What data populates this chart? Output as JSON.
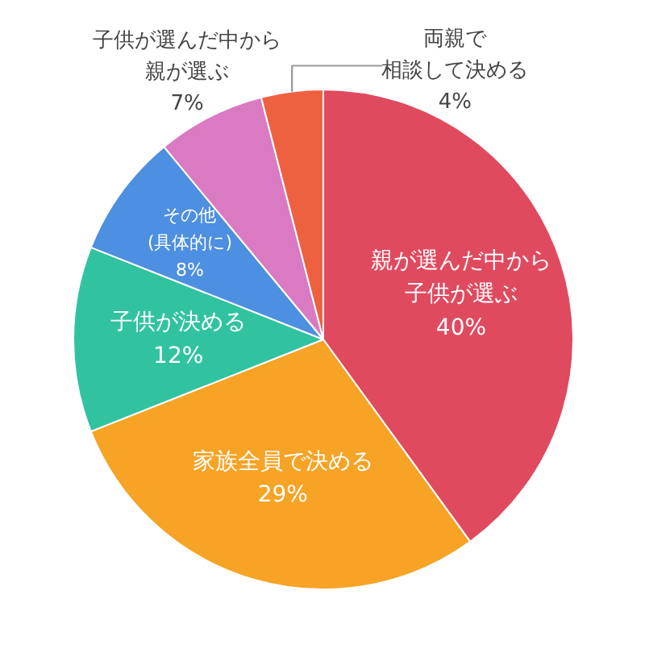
{
  "chart_data": {
    "type": "pie",
    "categories": [
      "親が選んだ中から子供が選ぶ",
      "家族全員で決める",
      "子供が決める",
      "その他(具体的に)",
      "子供が選んだ中から親が選ぶ",
      "両親で相談して決める"
    ],
    "values": [
      40,
      29,
      12,
      8,
      7,
      4
    ],
    "value_labels": [
      "40%",
      "29%",
      "12%",
      "8%",
      "7%",
      "4%"
    ],
    "colors": [
      "#e04a5f",
      "#f7a325",
      "#31c3a0",
      "#4d8fe0",
      "#d97ac2",
      "#ee6140"
    ]
  }
}
